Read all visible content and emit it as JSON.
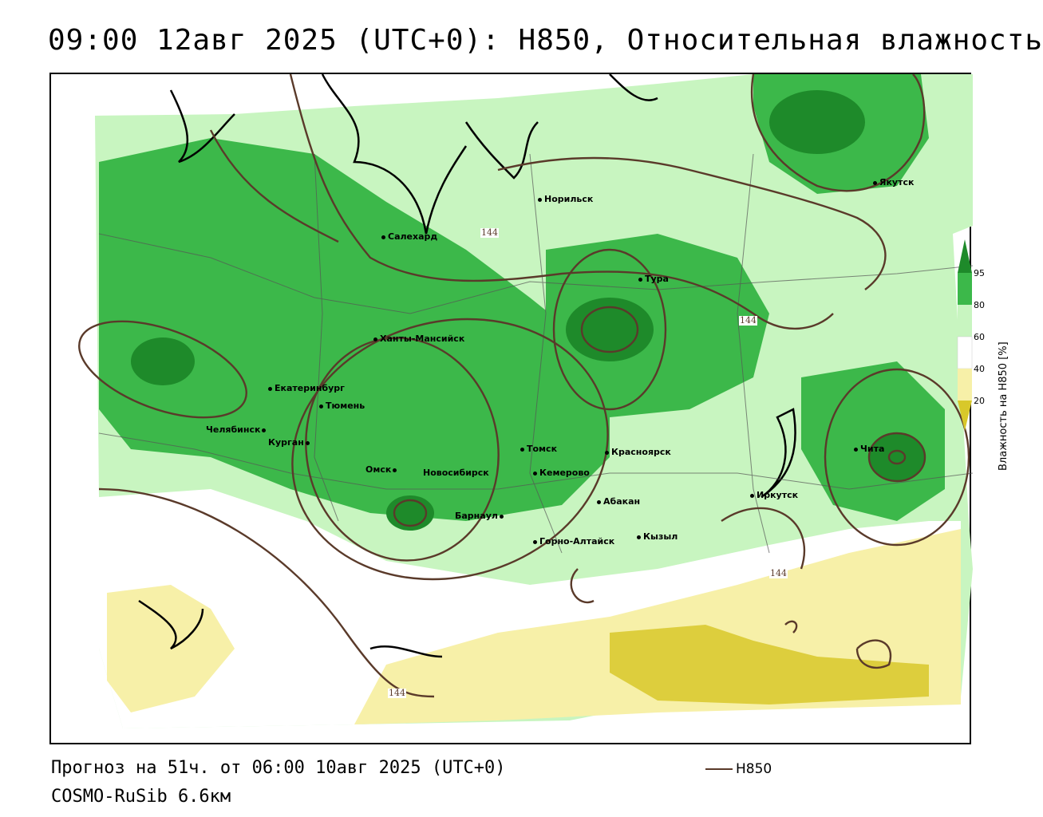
{
  "title": "09:00 12авг 2025 (UTC+0): H850, Относительная влажность",
  "footer": {
    "forecast": "Прогноз на 51ч. от 06:00 10авг 2025 (UTC+0)",
    "model": "COSMO-RuSib 6.6км"
  },
  "contour_legend": {
    "label": "H850",
    "color": "#5a3a2a"
  },
  "legend": {
    "title": "Влажность на H850 [%]",
    "ticks": [
      "95",
      "80",
      "60",
      "40",
      "20"
    ],
    "colors": {
      "95": "#1e8a2a",
      "80": "#3cb84a",
      "60": "#c8f5c0",
      "40": "#ffffff",
      "20": "#f7f0a8",
      "0": "#d8c82a"
    }
  },
  "contour_labels": [
    "144",
    "144",
    "144",
    "144"
  ],
  "cities": [
    {
      "name": "Якутск"
    },
    {
      "name": "Норильск"
    },
    {
      "name": "Салехард"
    },
    {
      "name": "Тура"
    },
    {
      "name": "Ханты-Мансийск"
    },
    {
      "name": "Екатеринбург"
    },
    {
      "name": "Тюмень"
    },
    {
      "name": "Челябинск"
    },
    {
      "name": "Курган"
    },
    {
      "name": "Омск"
    },
    {
      "name": "Томск"
    },
    {
      "name": "Новосибирск"
    },
    {
      "name": "Кемерово"
    },
    {
      "name": "Красноярск"
    },
    {
      "name": "Абакан"
    },
    {
      "name": "Барнаул"
    },
    {
      "name": "Горно-Алтайск"
    },
    {
      "name": "Кызыл"
    },
    {
      "name": "Иркутск"
    },
    {
      "name": "Чита"
    }
  ]
}
